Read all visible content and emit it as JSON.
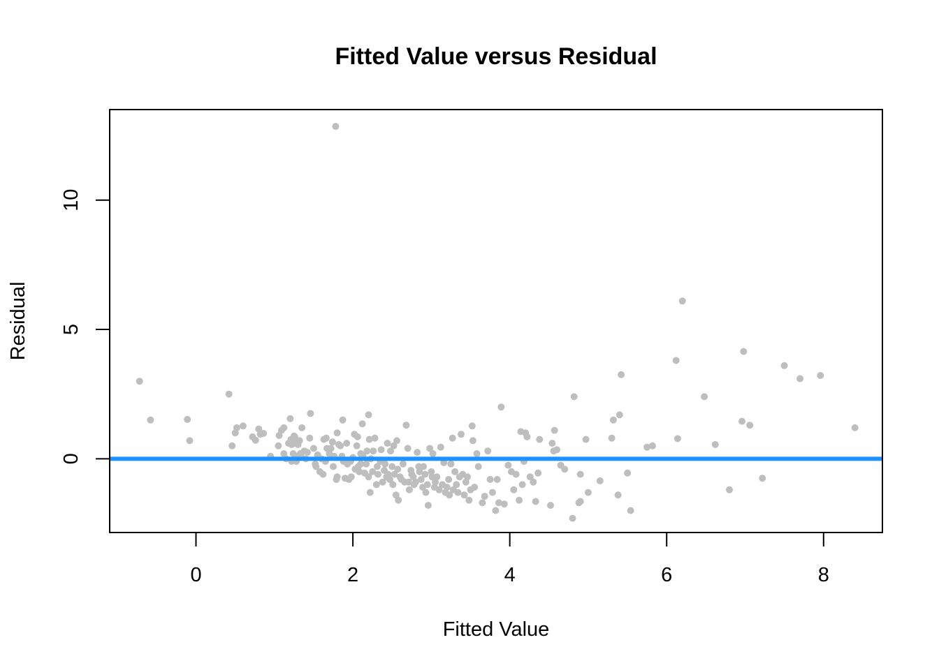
{
  "chart_data": {
    "type": "scatter",
    "title": "Fitted Value versus Residual",
    "xlabel": "Fitted Value",
    "ylabel": "Residual",
    "xlim": [
      -1.1,
      8.75
    ],
    "ylim": [
      -2.85,
      13.5
    ],
    "xticks": [
      0,
      2,
      4,
      6,
      8
    ],
    "yticks": [
      0,
      5,
      10
    ],
    "xtick_labels": [
      "0",
      "2",
      "4",
      "6",
      "8"
    ],
    "ytick_labels": [
      "0",
      "5",
      "10"
    ],
    "grid": false,
    "legend": "none",
    "point_color": "#bebebe",
    "reference_line": {
      "y": 0,
      "color": "#1e90ff"
    },
    "points": [
      [
        -0.72,
        3.0
      ],
      [
        -0.58,
        1.5
      ],
      [
        -0.11,
        1.52
      ],
      [
        -0.08,
        0.7
      ],
      [
        0.42,
        2.5
      ],
      [
        0.46,
        0.5
      ],
      [
        0.5,
        1.0
      ],
      [
        0.52,
        1.2
      ],
      [
        0.6,
        1.27
      ],
      [
        0.72,
        0.85
      ],
      [
        0.76,
        0.72
      ],
      [
        0.8,
        1.15
      ],
      [
        0.82,
        0.95
      ],
      [
        0.86,
        0.98
      ],
      [
        0.95,
        0.1
      ],
      [
        1.05,
        0.5
      ],
      [
        1.06,
        0.9
      ],
      [
        1.09,
        1.1
      ],
      [
        1.12,
        1.2
      ],
      [
        1.12,
        0.2
      ],
      [
        1.15,
        0.0
      ],
      [
        1.18,
        0.6
      ],
      [
        1.2,
        1.55
      ],
      [
        1.21,
        0.75
      ],
      [
        1.22,
        0.55
      ],
      [
        1.22,
        -0.1
      ],
      [
        1.24,
        0.2
      ],
      [
        1.25,
        0.88
      ],
      [
        1.26,
        0.85
      ],
      [
        1.27,
        0.6
      ],
      [
        1.28,
        -0.1
      ],
      [
        1.29,
        0.1
      ],
      [
        1.3,
        0.55
      ],
      [
        1.32,
        0.7
      ],
      [
        1.33,
        0.2
      ],
      [
        1.34,
        0.1
      ],
      [
        1.35,
        1.2
      ],
      [
        1.38,
        0.3
      ],
      [
        1.4,
        0.0
      ],
      [
        1.42,
        0.25
      ],
      [
        1.45,
        0.8
      ],
      [
        1.46,
        1.75
      ],
      [
        1.5,
        0.4
      ],
      [
        1.52,
        -0.2
      ],
      [
        1.53,
        -0.3
      ],
      [
        1.55,
        0.15
      ],
      [
        1.58,
        -0.5
      ],
      [
        1.6,
        0.0
      ],
      [
        1.62,
        -0.6
      ],
      [
        1.63,
        0.75
      ],
      [
        1.65,
        -0.1
      ],
      [
        1.66,
        0.8
      ],
      [
        1.67,
        0.4
      ],
      [
        1.7,
        0.2
      ],
      [
        1.72,
        0.4
      ],
      [
        1.74,
        0.65
      ],
      [
        1.75,
        -0.3
      ],
      [
        1.76,
        0.1
      ],
      [
        1.78,
        12.85
      ],
      [
        1.79,
        -0.8
      ],
      [
        1.8,
        1.0
      ],
      [
        1.8,
        -0.7
      ],
      [
        1.82,
        0.55
      ],
      [
        1.84,
        0.5
      ],
      [
        1.86,
        0.1
      ],
      [
        1.87,
        1.5
      ],
      [
        1.88,
        -0.1
      ],
      [
        1.9,
        -0.75
      ],
      [
        1.92,
        0.6
      ],
      [
        1.93,
        -0.2
      ],
      [
        1.95,
        -0.8
      ],
      [
        1.97,
        -0.1
      ],
      [
        1.98,
        -0.7
      ],
      [
        2.0,
        0.05
      ],
      [
        2.02,
        0.95
      ],
      [
        2.03,
        -0.4
      ],
      [
        2.05,
        0.5
      ],
      [
        2.06,
        0.85
      ],
      [
        2.07,
        -0.3
      ],
      [
        2.08,
        -0.5
      ],
      [
        2.1,
        0.2
      ],
      [
        2.1,
        -0.2
      ],
      [
        2.12,
        1.35
      ],
      [
        2.13,
        0.1
      ],
      [
        2.15,
        -0.55
      ],
      [
        2.17,
        -0.2
      ],
      [
        2.18,
        0.3
      ],
      [
        2.2,
        -0.7
      ],
      [
        2.2,
        1.7
      ],
      [
        2.21,
        0.75
      ],
      [
        2.22,
        -1.3
      ],
      [
        2.23,
        0.0
      ],
      [
        2.25,
        -0.5
      ],
      [
        2.26,
        0.3
      ],
      [
        2.28,
        0.8
      ],
      [
        2.3,
        -1.0
      ],
      [
        2.31,
        -0.3
      ],
      [
        2.32,
        -0.6
      ],
      [
        2.35,
        -0.1
      ],
      [
        2.36,
        0.35
      ],
      [
        2.38,
        -0.9
      ],
      [
        2.4,
        -0.45
      ],
      [
        2.41,
        -0.2
      ],
      [
        2.43,
        -0.7
      ],
      [
        2.44,
        0.6
      ],
      [
        2.45,
        -0.6
      ],
      [
        2.47,
        -0.8
      ],
      [
        2.48,
        0.3
      ],
      [
        2.5,
        -0.3
      ],
      [
        2.51,
        -1.0
      ],
      [
        2.52,
        0.5
      ],
      [
        2.53,
        -0.6
      ],
      [
        2.55,
        -1.4
      ],
      [
        2.56,
        0.7
      ],
      [
        2.57,
        -0.4
      ],
      [
        2.58,
        -1.6
      ],
      [
        2.6,
        -0.7
      ],
      [
        2.62,
        -0.8
      ],
      [
        2.64,
        -0.2
      ],
      [
        2.66,
        -0.9
      ],
      [
        2.68,
        1.3
      ],
      [
        2.7,
        0.4
      ],
      [
        2.71,
        -0.9
      ],
      [
        2.72,
        -1.2
      ],
      [
        2.74,
        -0.45
      ],
      [
        2.75,
        -0.6
      ],
      [
        2.77,
        -0.7
      ],
      [
        2.78,
        -1.0
      ],
      [
        2.8,
        -0.9
      ],
      [
        2.82,
        0.25
      ],
      [
        2.84,
        -0.3
      ],
      [
        2.85,
        -0.5
      ],
      [
        2.87,
        -0.8
      ],
      [
        2.89,
        -1.1
      ],
      [
        2.9,
        -0.3
      ],
      [
        2.92,
        -0.6
      ],
      [
        2.93,
        -1.3
      ],
      [
        2.95,
        -1.0
      ],
      [
        2.96,
        -1.8
      ],
      [
        2.98,
        0.4
      ],
      [
        3.0,
        -0.5
      ],
      [
        3.01,
        -0.7
      ],
      [
        3.02,
        0.2
      ],
      [
        3.04,
        -1.1
      ],
      [
        3.05,
        -0.9
      ],
      [
        3.07,
        -0.7
      ],
      [
        3.1,
        -1.2
      ],
      [
        3.12,
        0.45
      ],
      [
        3.14,
        -1.0
      ],
      [
        3.16,
        -0.15
      ],
      [
        3.18,
        -1.3
      ],
      [
        3.2,
        -1.1
      ],
      [
        3.22,
        -0.8
      ],
      [
        3.23,
        -1.4
      ],
      [
        3.25,
        -0.2
      ],
      [
        3.27,
        0.8
      ],
      [
        3.28,
        -1.2
      ],
      [
        3.3,
        -0.5
      ],
      [
        3.32,
        -1.0
      ],
      [
        3.34,
        -1.3
      ],
      [
        3.36,
        -0.7
      ],
      [
        3.38,
        0.95
      ],
      [
        3.4,
        -0.6
      ],
      [
        3.42,
        -1.4
      ],
      [
        3.44,
        -0.9
      ],
      [
        3.46,
        -0.7
      ],
      [
        3.48,
        -1.6
      ],
      [
        3.5,
        -1.2
      ],
      [
        3.52,
        1.27
      ],
      [
        3.53,
        0.7
      ],
      [
        3.55,
        -1.1
      ],
      [
        3.58,
        0.2
      ],
      [
        3.6,
        -0.3
      ],
      [
        3.65,
        -1.7
      ],
      [
        3.68,
        -1.45
      ],
      [
        3.72,
        0.3
      ],
      [
        3.75,
        -0.8
      ],
      [
        3.78,
        -1.3
      ],
      [
        3.82,
        -2.0
      ],
      [
        3.84,
        -0.8
      ],
      [
        3.86,
        -1.7
      ],
      [
        3.89,
        2.0
      ],
      [
        3.93,
        -1.75
      ],
      [
        3.98,
        -0.25
      ],
      [
        4.02,
        -0.5
      ],
      [
        4.05,
        -1.2
      ],
      [
        4.08,
        -0.6
      ],
      [
        4.12,
        -1.6
      ],
      [
        4.14,
        1.05
      ],
      [
        4.16,
        -1.0
      ],
      [
        4.18,
        -0.1
      ],
      [
        4.2,
        1.0
      ],
      [
        4.22,
        0.85
      ],
      [
        4.26,
        -0.7
      ],
      [
        4.3,
        -0.9
      ],
      [
        4.33,
        -1.65
      ],
      [
        4.36,
        -0.55
      ],
      [
        4.38,
        0.75
      ],
      [
        4.52,
        -1.8
      ],
      [
        4.54,
        0.6
      ],
      [
        4.56,
        0.3
      ],
      [
        4.57,
        1.1
      ],
      [
        4.6,
        0.35
      ],
      [
        4.65,
        -0.25
      ],
      [
        4.7,
        -0.4
      ],
      [
        4.8,
        -2.3
      ],
      [
        4.82,
        2.4
      ],
      [
        4.88,
        -1.7
      ],
      [
        4.9,
        -1.65
      ],
      [
        4.9,
        -0.6
      ],
      [
        4.97,
        0.75
      ],
      [
        5.0,
        -1.3
      ],
      [
        5.15,
        -0.85
      ],
      [
        5.3,
        0.8
      ],
      [
        5.32,
        1.5
      ],
      [
        5.38,
        -1.4
      ],
      [
        5.4,
        1.7
      ],
      [
        5.42,
        3.25
      ],
      [
        5.5,
        -0.55
      ],
      [
        5.54,
        -2.0
      ],
      [
        5.75,
        0.45
      ],
      [
        5.82,
        0.5
      ],
      [
        6.12,
        3.8
      ],
      [
        6.14,
        0.78
      ],
      [
        6.2,
        6.1
      ],
      [
        6.48,
        2.4
      ],
      [
        6.62,
        0.55
      ],
      [
        6.8,
        -1.2
      ],
      [
        6.96,
        1.45
      ],
      [
        6.98,
        4.15
      ],
      [
        7.06,
        1.3
      ],
      [
        7.22,
        -0.75
      ],
      [
        7.5,
        3.6
      ],
      [
        7.7,
        3.1
      ],
      [
        7.96,
        3.22
      ],
      [
        8.4,
        1.2
      ]
    ]
  }
}
